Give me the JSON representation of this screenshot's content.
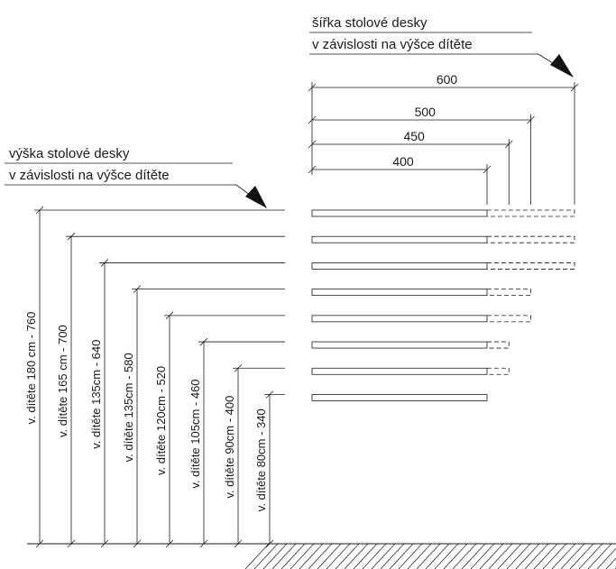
{
  "labels": {
    "width_line1": "šířka stolové desky",
    "width_line2": "v závislosti na výšce dítěte",
    "height_line1": "výška stolové desky",
    "height_line2": "v závislosti na výšce dítěte"
  },
  "width_dimensions": [
    {
      "text": "600",
      "value": 600
    },
    {
      "text": "500",
      "value": 500
    },
    {
      "text": "450",
      "value": 450
    },
    {
      "text": "400",
      "value": 400
    }
  ],
  "height_dimensions": [
    {
      "text": "v. dítěte 180 cm - 760",
      "value": 760,
      "depth": 600
    },
    {
      "text": "v. dítěte 165 cm - 700",
      "value": 700,
      "depth": 600
    },
    {
      "text": "v. dítěte 135cm - 640",
      "value": 640,
      "depth": 600
    },
    {
      "text": "v. dítěte 135cm - 580",
      "value": 580,
      "depth": 500
    },
    {
      "text": "v. dítěte 120cm - 520",
      "value": 520,
      "depth": 500
    },
    {
      "text": "v. dítěte 105cm - 460",
      "value": 460,
      "depth": 450
    },
    {
      "text": "v. dítěte 90cm - 400",
      "value": 400,
      "depth": 450
    },
    {
      "text": "v. dítěte 80cm - 340",
      "value": 340,
      "depth": 400
    }
  ]
}
